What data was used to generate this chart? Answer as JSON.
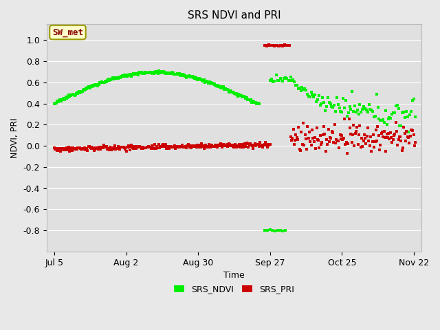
{
  "title": "SRS NDVI and PRI",
  "xlabel": "Time",
  "ylabel": "NDVI, PRI",
  "ylim": [
    -1.0,
    1.15
  ],
  "yticks": [
    1.0,
    0.8,
    0.6,
    0.4,
    0.2,
    0.0,
    -0.2,
    -0.4,
    -0.6,
    -0.8
  ],
  "fig_bg": "#e8e8e8",
  "plot_bg": "#e0e0e0",
  "annotation_text": "SW_met",
  "ndvi_color": "#00ee00",
  "pri_color": "#cc0000",
  "marker_size": 3,
  "legend_labels": [
    "SRS_NDVI",
    "SRS_PRI"
  ],
  "x_tick_labels": [
    "Jul 5",
    "Aug 2",
    "Aug 30",
    "Sep 27",
    "Oct 25",
    "Nov 22"
  ],
  "x_tick_positions": [
    0,
    28,
    56,
    84,
    112,
    140
  ],
  "xlim": [
    -3,
    143
  ]
}
